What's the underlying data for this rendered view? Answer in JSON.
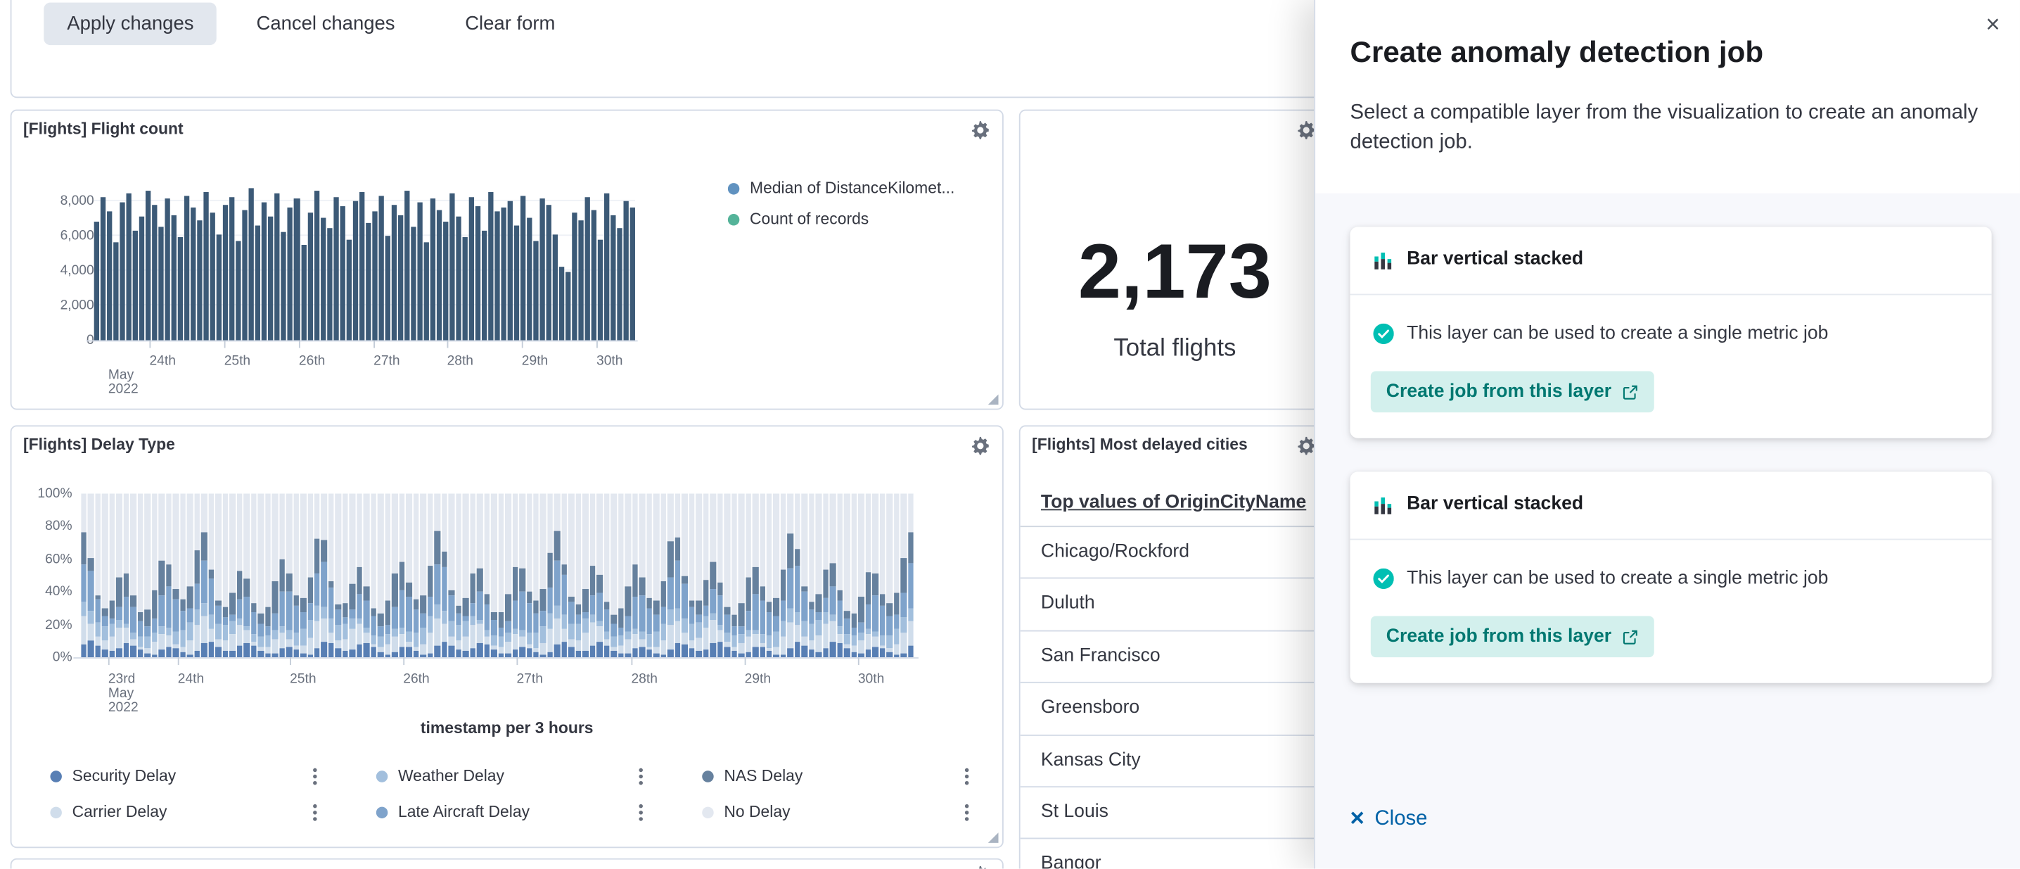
{
  "toolbar": {
    "apply_label": "Apply changes",
    "cancel_label": "Cancel changes",
    "clear_label": "Clear form"
  },
  "panels": {
    "flight_count": {
      "title": "[Flights] Flight count",
      "legend": [
        {
          "label": "Median of DistanceKilomet...",
          "color": "#6092C0"
        },
        {
          "label": "Count of records",
          "color": "#54B399"
        }
      ],
      "chart": {
        "type": "bar",
        "bar_color": "#3c5a77",
        "ylim": [
          0,
          8800
        ],
        "yticks": [
          "8,000",
          "6,000",
          "4,000",
          "2,000",
          "0"
        ],
        "x_start_label": [
          "May",
          "2022"
        ],
        "xticks": [
          "24th",
          "25th",
          "26th",
          "27th",
          "28th",
          "29th",
          "30th"
        ],
        "values": [
          6800,
          8200,
          7400,
          5600,
          7900,
          8400,
          6300,
          7100,
          8600,
          7800,
          6500,
          8100,
          7200,
          5900,
          8300,
          7600,
          6900,
          8500,
          7300,
          6100,
          7800,
          8200,
          5700,
          7500,
          8700,
          6600,
          7900,
          7100,
          8400,
          6200,
          7600,
          8100,
          5500,
          7300,
          8600,
          7000,
          6400,
          8200,
          7700,
          5800,
          8000,
          8500,
          6700,
          7400,
          8300,
          6000,
          7800,
          7200,
          8600,
          6500,
          7900,
          5600,
          8100,
          7500,
          6800,
          8400,
          7100,
          5900,
          8200,
          7700,
          6300,
          8500,
          7400,
          7600,
          8000,
          6600,
          8300,
          7000,
          5700,
          8100,
          7800,
          6100,
          4200,
          3900,
          7300,
          6900,
          8200,
          7500,
          5800,
          8400,
          7200,
          6400,
          8000,
          7600
        ]
      }
    },
    "total_flights": {
      "value": "2,173",
      "label": "Total flights"
    },
    "delay_type": {
      "title": "[Flights] Delay Type",
      "chart": {
        "type": "bar_stacked_percent",
        "yticks": [
          "100%",
          "80%",
          "60%",
          "40%",
          "20%",
          "0%"
        ],
        "x_start_label": [
          "23rd",
          "May",
          "2022"
        ],
        "xticks": [
          "24th",
          "25th",
          "26th",
          "27th",
          "28th",
          "29th",
          "30th"
        ],
        "axis_title": "timestamp per 3 hours",
        "bar_count": 118,
        "segments": [
          {
            "name": "Security Delay",
            "color": "#587fb4",
            "base": 0.05
          },
          {
            "name": "Carrier Delay",
            "color": "#d0ddeb",
            "base": 0.07
          },
          {
            "name": "Weather Delay",
            "color": "#a2bfdd",
            "base": 0.07
          },
          {
            "name": "Late Aircraft Delay",
            "color": "#7fa3cb",
            "base": 0.13
          },
          {
            "name": "NAS Delay",
            "color": "#66819e",
            "base": 0.11
          },
          {
            "name": "No Delay",
            "color": "#e3e8f0",
            "base": 0.57
          }
        ]
      },
      "legend_rows": [
        [
          {
            "label": "Security Delay",
            "color": "#587fb4"
          },
          {
            "label": "Weather Delay",
            "color": "#a2bfdd"
          },
          {
            "label": "NAS Delay",
            "color": "#66819e"
          }
        ],
        [
          {
            "label": "Carrier Delay",
            "color": "#d0ddeb"
          },
          {
            "label": "Late Aircraft Delay",
            "color": "#7fa3cb"
          },
          {
            "label": "No Delay",
            "color": "#e3e8f0"
          }
        ]
      ]
    },
    "most_delayed": {
      "title": "[Flights] Most delayed cities",
      "column_header": "Top values of OriginCityName",
      "rows": [
        "Chicago/Rockford",
        "Duluth",
        "San Francisco",
        "Greensboro",
        "Kansas City",
        "St Louis",
        "Bangor"
      ]
    }
  },
  "flyout": {
    "title": "Create anomaly detection job",
    "description": "Select a compatible layer from the visualization to create an anomaly detection job.",
    "cards": [
      {
        "layer_title": "Bar vertical stacked",
        "compatibility": "This layer can be used to create a single metric job",
        "button_label": "Create job from this layer"
      },
      {
        "layer_title": "Bar vertical stacked",
        "compatibility": "This layer can be used to create a single metric job",
        "button_label": "Create job from this layer"
      }
    ],
    "close_label": "Close",
    "close_icon": "×"
  },
  "colors": {
    "accent_teal": "#00BFB3",
    "job_button_bg": "#d3f0ed",
    "job_button_text": "#007871",
    "link_blue": "#0061a6",
    "panel_border": "#d3dae6"
  }
}
